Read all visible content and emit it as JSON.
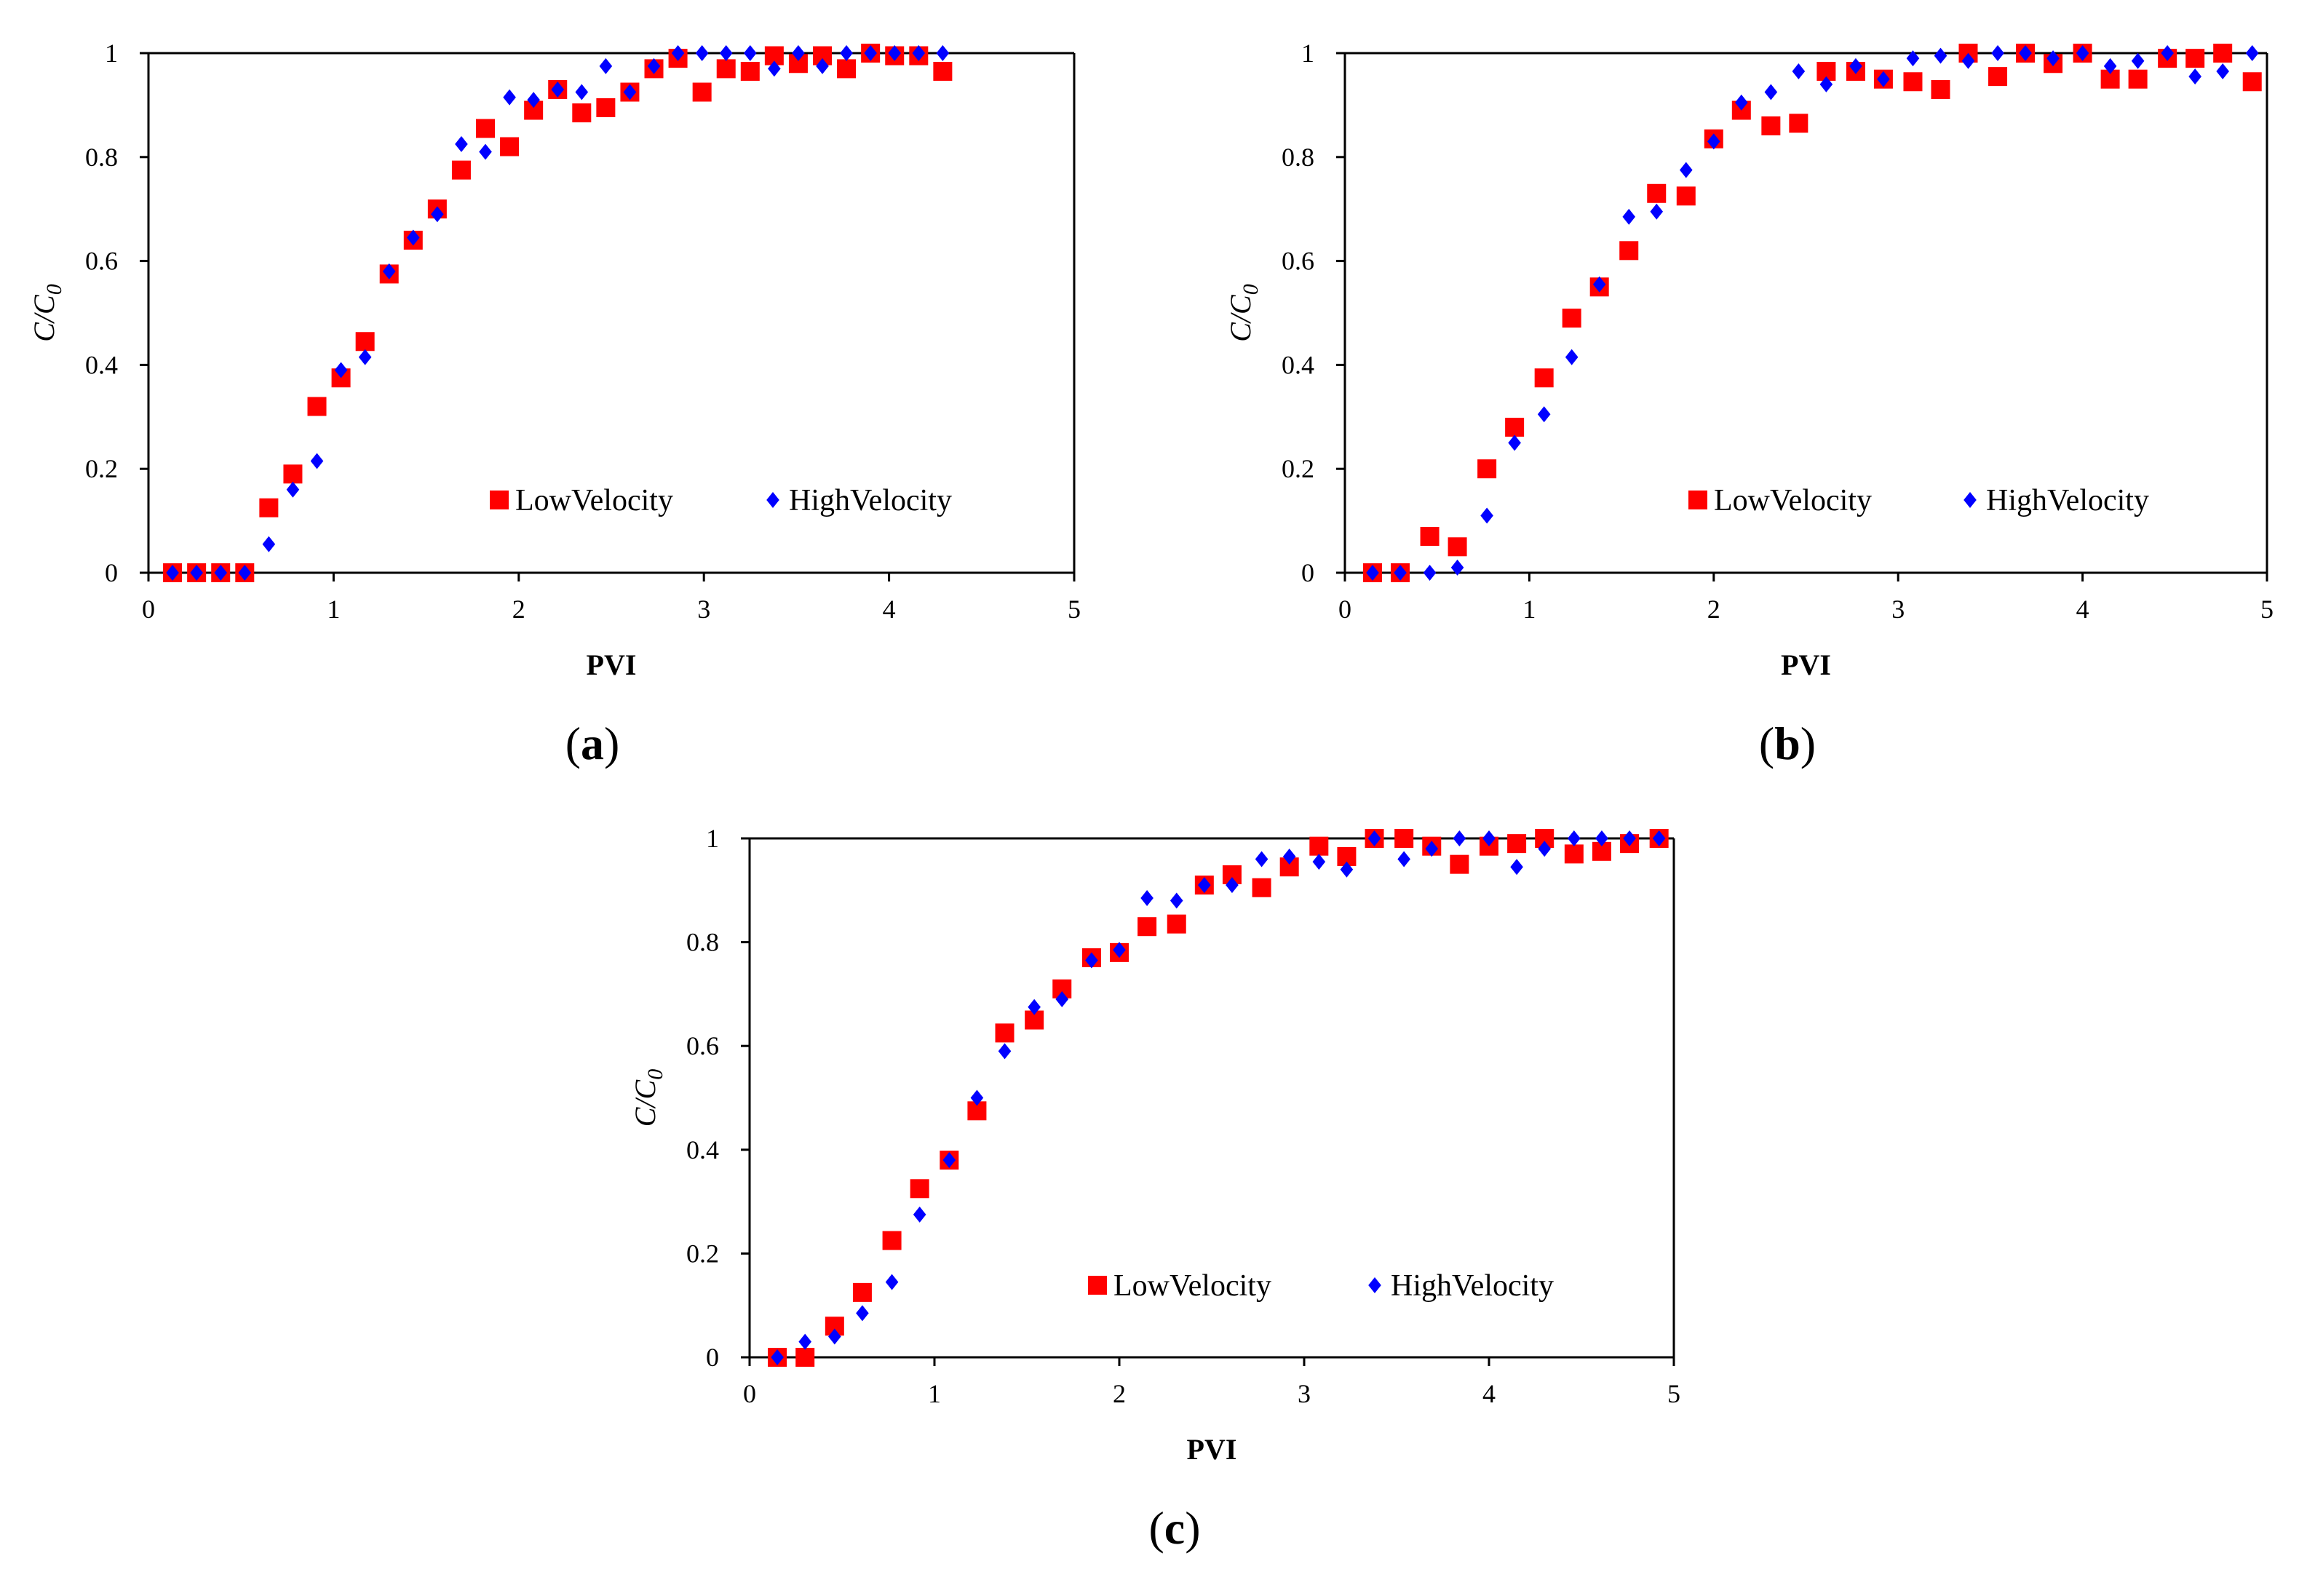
{
  "chart_data": [
    {
      "type": "scatter",
      "panel_label": "a",
      "xlabel": "PVI",
      "ylabel": {
        "base": "C/C",
        "sub": "0"
      },
      "xlim": [
        0,
        5
      ],
      "ylim": [
        0,
        1
      ],
      "xticks": [
        "0",
        "1",
        "2",
        "3",
        "4",
        "5"
      ],
      "yticks": [
        "0",
        "0.2",
        "0.4",
        "0.6",
        "0.8",
        "1"
      ],
      "legend": "bottom-right",
      "series": [
        {
          "name": "LowVelocity",
          "marker": "square",
          "color": "#ff0000",
          "x": [
            0.13,
            0.26,
            0.39,
            0.52,
            0.65,
            0.78,
            0.91,
            1.04,
            1.17,
            1.3,
            1.43,
            1.56,
            1.69,
            1.82,
            1.95,
            2.08,
            2.21,
            2.34,
            2.47,
            2.6,
            2.73,
            2.86,
            2.99,
            3.12,
            3.25,
            3.38,
            3.51,
            3.64,
            3.77,
            3.9,
            4.03,
            4.16,
            4.29
          ],
          "y": [
            0,
            0,
            0,
            0,
            0.125,
            0.19,
            0.32,
            0.375,
            0.445,
            0.575,
            0.64,
            0.7,
            0.775,
            0.855,
            0.82,
            0.89,
            0.93,
            0.885,
            0.895,
            0.925,
            0.97,
            0.99,
            0.925,
            0.97,
            0.965,
            0.995,
            0.98,
            0.995,
            0.97,
            1.0,
            0.995,
            0.995,
            0.965
          ]
        },
        {
          "name": "HighVelocity",
          "marker": "diamond",
          "color": "#0000ff",
          "x": [
            0.13,
            0.26,
            0.39,
            0.52,
            0.65,
            0.78,
            0.91,
            1.04,
            1.17,
            1.3,
            1.43,
            1.56,
            1.69,
            1.82,
            1.95,
            2.08,
            2.21,
            2.34,
            2.47,
            2.6,
            2.73,
            2.86,
            2.99,
            3.12,
            3.25,
            3.38,
            3.51,
            3.64,
            3.77,
            3.9,
            4.03,
            4.16,
            4.29
          ],
          "y": [
            0,
            0,
            0,
            0,
            0.055,
            0.16,
            0.215,
            0.39,
            0.415,
            0.58,
            0.645,
            0.69,
            0.825,
            0.81,
            0.915,
            0.91,
            0.93,
            0.925,
            0.975,
            0.925,
            0.975,
            1.0,
            1.0,
            1.0,
            1.0,
            0.97,
            1.0,
            0.975,
            1.0,
            1.0,
            1.0,
            1.0,
            1.0
          ]
        }
      ]
    },
    {
      "type": "scatter",
      "panel_label": "b",
      "xlabel": "PVI",
      "ylabel": {
        "base": "C/C",
        "sub": "0"
      },
      "xlim": [
        0,
        5
      ],
      "ylim": [
        0,
        1
      ],
      "xticks": [
        "0",
        "1",
        "2",
        "3",
        "4",
        "5"
      ],
      "yticks": [
        "0",
        "0.2",
        "0.4",
        "0.6",
        "0.8",
        "1"
      ],
      "legend": "bottom-right",
      "series": [
        {
          "name": "LowVelocity",
          "marker": "square",
          "color": "#ff0000",
          "x": [
            0.15,
            0.3,
            0.46,
            0.61,
            0.77,
            0.92,
            1.08,
            1.23,
            1.38,
            1.54,
            1.69,
            1.85,
            2.0,
            2.15,
            2.31,
            2.46,
            2.61,
            2.77,
            2.92,
            3.08,
            3.23,
            3.38,
            3.54,
            3.69,
            3.84,
            4.0,
            4.15,
            4.3,
            4.46,
            4.61,
            4.76,
            4.92
          ],
          "y": [
            0,
            0,
            0.07,
            0.05,
            0.2,
            0.28,
            0.375,
            0.49,
            0.55,
            0.62,
            0.73,
            0.725,
            0.835,
            0.89,
            0.86,
            0.865,
            0.965,
            0.965,
            0.95,
            0.945,
            0.93,
            1.0,
            0.955,
            1.0,
            0.98,
            1.0,
            0.95,
            0.95,
            0.99,
            0.99,
            1.0,
            0.945
          ]
        },
        {
          "name": "HighVelocity",
          "marker": "diamond",
          "color": "#0000ff",
          "x": [
            0.15,
            0.3,
            0.46,
            0.61,
            0.77,
            0.92,
            1.08,
            1.23,
            1.38,
            1.54,
            1.69,
            1.85,
            2.0,
            2.15,
            2.31,
            2.46,
            2.61,
            2.77,
            2.92,
            3.08,
            3.23,
            3.38,
            3.54,
            3.69,
            3.84,
            4.0,
            4.15,
            4.3,
            4.46,
            4.61,
            4.76,
            4.92
          ],
          "y": [
            0,
            0,
            0,
            0.01,
            0.11,
            0.25,
            0.305,
            0.415,
            0.555,
            0.685,
            0.695,
            0.775,
            0.83,
            0.905,
            0.925,
            0.965,
            0.94,
            0.975,
            0.95,
            0.99,
            0.995,
            0.985,
            1.0,
            1.0,
            0.99,
            1.0,
            0.975,
            0.985,
            1.0,
            0.955,
            0.965,
            1.0
          ]
        }
      ]
    },
    {
      "type": "scatter",
      "panel_label": "c",
      "xlabel": "PVI",
      "ylabel": {
        "base": "C/C",
        "sub": "0"
      },
      "xlim": [
        0,
        5
      ],
      "ylim": [
        0,
        1
      ],
      "xticks": [
        "0",
        "1",
        "2",
        "3",
        "4",
        "5"
      ],
      "yticks": [
        "0",
        "0.2",
        "0.4",
        "0.6",
        "0.8",
        "1"
      ],
      "legend": "bottom-right",
      "series": [
        {
          "name": "LowVelocity",
          "marker": "square",
          "color": "#ff0000",
          "x": [
            0.15,
            0.3,
            0.46,
            0.61,
            0.77,
            0.92,
            1.08,
            1.23,
            1.38,
            1.54,
            1.69,
            1.85,
            2.0,
            2.15,
            2.31,
            2.46,
            2.61,
            2.77,
            2.92,
            3.08,
            3.23,
            3.38,
            3.54,
            3.69,
            3.84,
            4.0,
            4.15,
            4.3,
            4.46,
            4.61,
            4.76,
            4.92
          ],
          "y": [
            0,
            0,
            0.06,
            0.125,
            0.225,
            0.325,
            0.38,
            0.475,
            0.625,
            0.65,
            0.71,
            0.77,
            0.78,
            0.83,
            0.835,
            0.91,
            0.93,
            0.905,
            0.945,
            0.985,
            0.965,
            1.0,
            1.0,
            0.985,
            0.95,
            0.985,
            0.99,
            1.0,
            0.97,
            0.975,
            0.99,
            1.0
          ]
        },
        {
          "name": "HighVelocity",
          "marker": "diamond",
          "color": "#0000ff",
          "x": [
            0.15,
            0.3,
            0.46,
            0.61,
            0.77,
            0.92,
            1.08,
            1.23,
            1.38,
            1.54,
            1.69,
            1.85,
            2.0,
            2.15,
            2.31,
            2.46,
            2.61,
            2.77,
            2.92,
            3.08,
            3.23,
            3.38,
            3.54,
            3.69,
            3.84,
            4.0,
            4.15,
            4.3,
            4.46,
            4.61,
            4.76,
            4.92
          ],
          "y": [
            0,
            0.03,
            0.04,
            0.085,
            0.145,
            0.275,
            0.38,
            0.5,
            0.59,
            0.675,
            0.69,
            0.765,
            0.785,
            0.885,
            0.88,
            0.91,
            0.91,
            0.96,
            0.965,
            0.955,
            0.94,
            1.0,
            0.96,
            0.98,
            1.0,
            1.0,
            0.945,
            0.98,
            1.0,
            1.0,
            1.0,
            1.0
          ]
        }
      ]
    }
  ]
}
